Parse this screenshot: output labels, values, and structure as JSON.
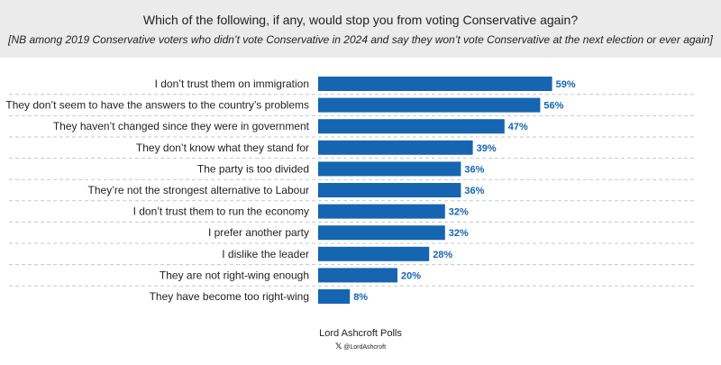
{
  "header": {
    "title": "Which of the following, if any, would stop you from voting Conservative again?",
    "subtitle": "[NB among 2019 Conservative voters who didn’t vote Conservative in 2024 and say they won’t vote Conservative at the next election or ever again]"
  },
  "footer": {
    "brand": "Lord Ashcroft Polls",
    "handle": "@LordAshcroft",
    "icon": "x-logo-icon"
  },
  "colors": {
    "bar": "#1565b0",
    "value_label": "#1565b0",
    "header_bg": "#ebebeb"
  },
  "chart_data": {
    "type": "bar",
    "orientation": "horizontal",
    "categories": [
      "I don’t trust them on immigration",
      "They don’t seem to have the answers to the country’s problems",
      "They haven’t changed since they were in government",
      "They don’t know what they stand for",
      "The party is too divided",
      "They’re not the strongest alternative to Labour",
      "I don’t trust them to run the economy",
      "I prefer another party",
      "I dislike the leader",
      "They are not right-wing enough",
      "They have become too right-wing"
    ],
    "values": [
      59,
      56,
      47,
      39,
      36,
      36,
      32,
      32,
      28,
      20,
      8
    ],
    "value_labels": [
      "59%",
      "56%",
      "47%",
      "39%",
      "36%",
      "36%",
      "32%",
      "32%",
      "28%",
      "20%",
      "8%"
    ],
    "xlim": [
      0,
      59
    ],
    "grid": false
  }
}
